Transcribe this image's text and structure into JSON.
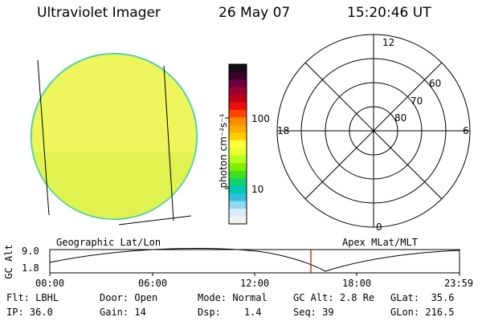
{
  "header": {
    "title": "Ultraviolet Imager",
    "date": "26 May 07",
    "time": "15:20:46 UT"
  },
  "colorbar": {
    "label": "photon cm⁻²s⁻¹",
    "ticks": [
      "100",
      "10"
    ],
    "colors": [
      "#101010",
      "#3a0028",
      "#6a0040",
      "#9a0030",
      "#c00018",
      "#e81010",
      "#ff4500",
      "#ff8c00",
      "#ffaa00",
      "#ffd000",
      "#ffff40",
      "#e8ff30",
      "#b8ff20",
      "#80f000",
      "#40e020",
      "#10d070",
      "#00c8b0",
      "#30c0e0",
      "#90d8f0",
      "#d8eef8",
      "#f2f2f2"
    ]
  },
  "polar": {
    "mlt_labels": {
      "top": "12",
      "right": "6",
      "left": "18",
      "bottom": "0"
    },
    "lat_labels": [
      "60",
      "70",
      "80"
    ]
  },
  "plot": {
    "ylabel": "GC Alt",
    "yticks": [
      "9.0",
      "1.8"
    ],
    "left_label": "Geographic Lat/Lon",
    "right_label": "Apex MLat/MLT",
    "xticks": [
      "00:00",
      "06:00",
      "12:00",
      "18:00",
      "23:59"
    ],
    "marker_color": "#cc0000"
  },
  "status": {
    "row1": [
      {
        "key": "Flt:",
        "value": "LBHL"
      },
      {
        "key": "Door:",
        "value": "Open"
      },
      {
        "key": "Mode:",
        "value": "Normal"
      },
      {
        "key": "GC Alt:",
        "value": "2.8 Re"
      },
      {
        "key": "GLat:",
        "value": "35.6"
      }
    ],
    "row2": [
      {
        "key": "IP:",
        "value": "36.0"
      },
      {
        "key": "Gain:",
        "value": "14"
      },
      {
        "key": "Dsp:",
        "value": "1.4"
      },
      {
        "key": "Seq:",
        "value": "39"
      },
      {
        "key": "GLon:",
        "value": "216.5"
      }
    ]
  }
}
